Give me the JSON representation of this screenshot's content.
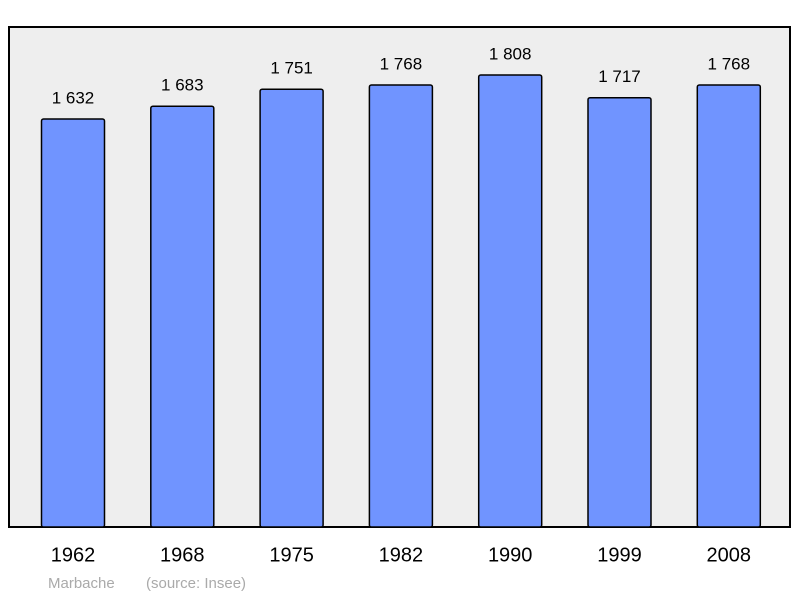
{
  "chart_data": {
    "type": "bar",
    "categories": [
      "1962",
      "1968",
      "1975",
      "1982",
      "1990",
      "1999",
      "2008"
    ],
    "values": [
      1632,
      1683,
      1751,
      1768,
      1808,
      1717,
      1768
    ],
    "value_labels": [
      "1 632",
      "1 683",
      "1 751",
      "1 768",
      "1 808",
      "1 717",
      "1 768"
    ],
    "color": "#7094ff",
    "ylim": [
      0,
      2000
    ],
    "caption": "Marbache",
    "source": "(source: Insee)"
  }
}
